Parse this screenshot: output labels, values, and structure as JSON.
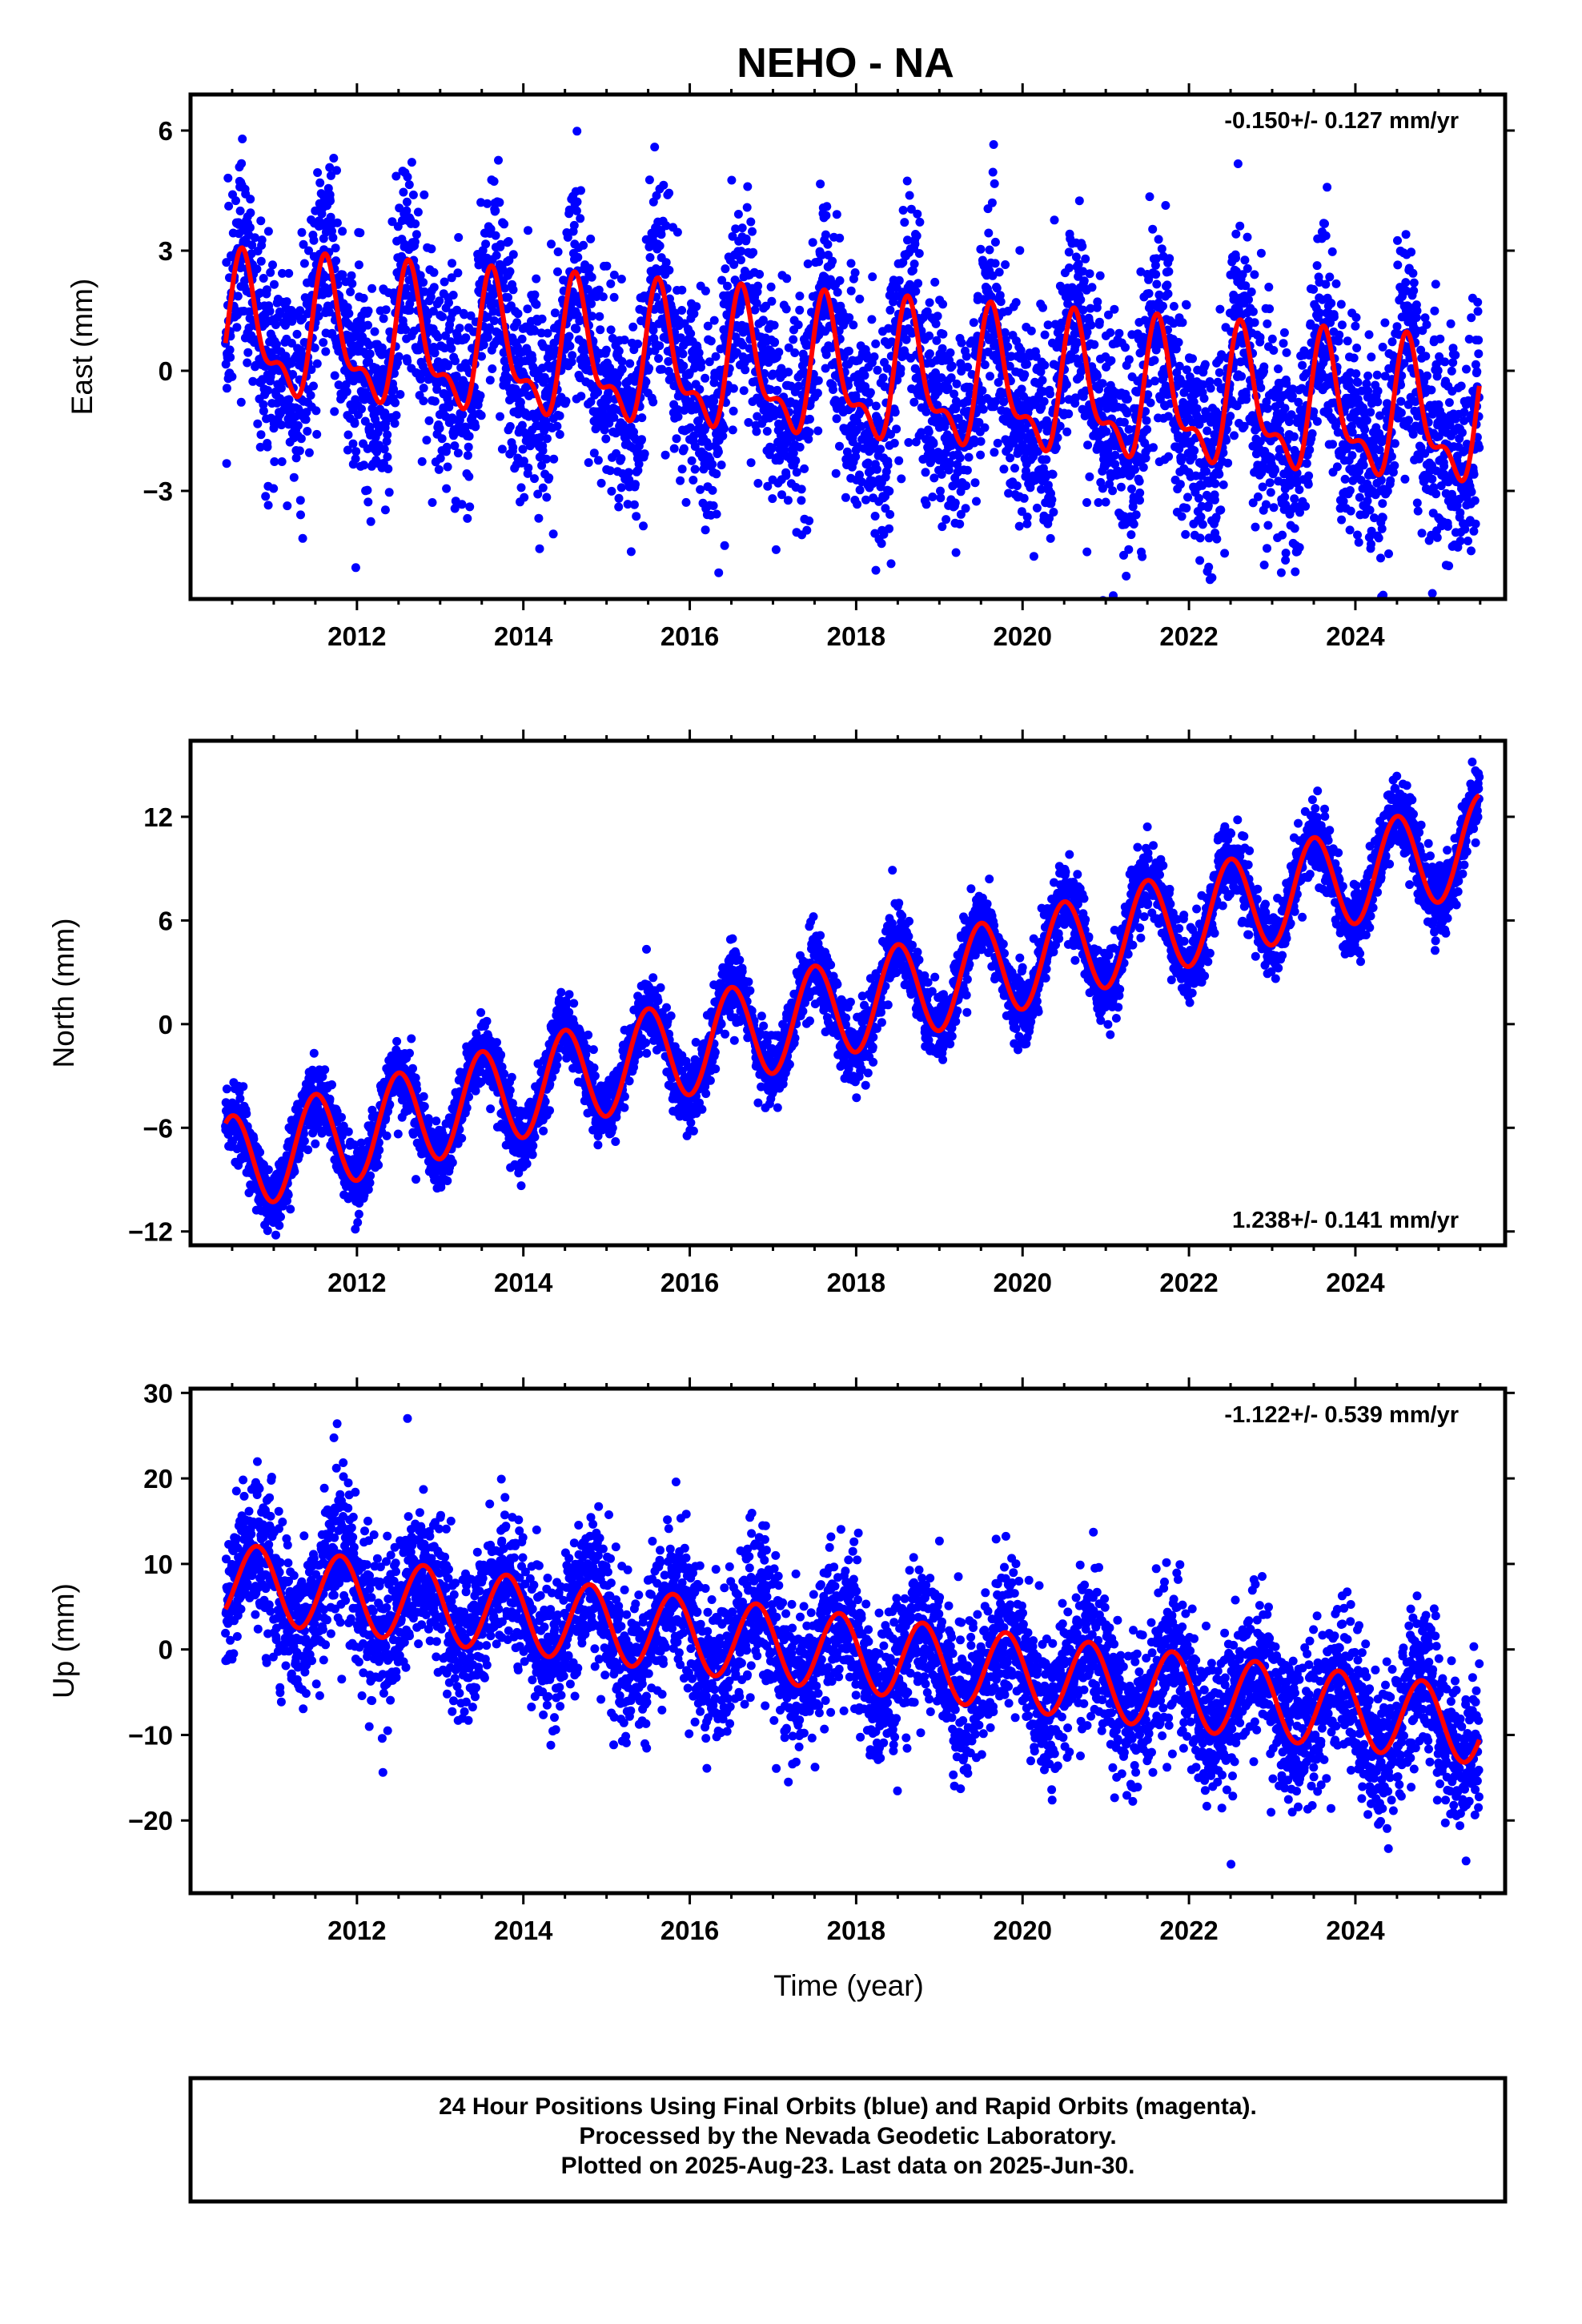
{
  "title": "NEHO - NA",
  "footer": {
    "line1": "24 Hour Positions Using Final Orbits (blue) and Rapid Orbits (magenta).",
    "line2": "Processed by the Nevada Geodetic Laboratory.",
    "line3": "Plotted on 2025-Aug-23. Last data on 2025-Jun-30."
  },
  "colors": {
    "points": "#0000ff",
    "fit": "#ff0000",
    "frame": "#000000"
  },
  "chart_data": [
    {
      "type": "scatter",
      "component": "East",
      "ylabel": "East (mm)",
      "xlabel": "",
      "rate_text": "-0.150+/- 0.127 mm/yr",
      "rate_position": "top-right",
      "xlim": [
        2010.0,
        2025.8
      ],
      "ylim": [
        -5.7,
        6.9
      ],
      "yticks": [
        -3,
        0,
        3,
        6
      ],
      "xticks": [
        2012,
        2014,
        2016,
        2018,
        2020,
        2022,
        2024
      ],
      "data_start": 2010.42,
      "data_end": 2025.49,
      "fit_model": {
        "offset": 0.95,
        "trend": -0.15,
        "annual_amplitude": 1.5,
        "annual_peak": 0.65,
        "semiannual_amplitude": 0.7,
        "semiannual_peak": 0.6
      },
      "scatter_sd": 1.3,
      "series": [
        {
          "name": "Final Orbits",
          "kind": "points",
          "color": "#0000ff"
        },
        {
          "name": "",
          "kind": "fit",
          "color": "#ff0000"
        }
      ]
    },
    {
      "type": "scatter",
      "component": "North",
      "ylabel": "North (mm)",
      "xlabel": "",
      "rate_text": "1.238+/- 0.141 mm/yr",
      "rate_position": "bottom-right",
      "xlim": [
        2010.0,
        2025.8
      ],
      "ylim": [
        -12.8,
        16.4
      ],
      "yticks": [
        -12,
        -6,
        0,
        6,
        12
      ],
      "xticks": [
        2012,
        2014,
        2016,
        2018,
        2020,
        2022,
        2024
      ],
      "data_start": 2010.42,
      "data_end": 2025.49,
      "fit_model": {
        "offset": -8.2,
        "trend": 1.238,
        "annual_amplitude": 2.8,
        "annual_peak": 0.5,
        "semiannual_amplitude": 0.0,
        "semiannual_peak": 0.0
      },
      "scatter_sd": 1.0,
      "series": [
        {
          "name": "Final Orbits",
          "kind": "points",
          "color": "#0000ff"
        },
        {
          "name": "",
          "kind": "fit",
          "color": "#ff0000"
        }
      ]
    },
    {
      "type": "scatter",
      "component": "Up",
      "ylabel": "Up (mm)",
      "xlabel": "Time (year)",
      "rate_text": "-1.122+/- 0.539 mm/yr",
      "rate_position": "top-right",
      "xlim": [
        2010.0,
        2025.8
      ],
      "ylim": [
        -28.5,
        30.5
      ],
      "yticks": [
        -20,
        -10,
        0,
        10,
        20,
        30
      ],
      "xticks": [
        2012,
        2014,
        2016,
        2018,
        2020,
        2022,
        2024
      ],
      "data_start": 2010.42,
      "data_end": 2025.49,
      "fit_model": {
        "offset": 8.0,
        "trend": -1.122,
        "annual_amplitude": 4.5,
        "annual_peak": 0.8,
        "semiannual_amplitude": 0.0,
        "semiannual_peak": 0.0
      },
      "scatter_sd": 4.2,
      "series": [
        {
          "name": "Final Orbits",
          "kind": "points",
          "color": "#0000ff"
        },
        {
          "name": "",
          "kind": "fit",
          "color": "#ff0000"
        }
      ]
    }
  ]
}
